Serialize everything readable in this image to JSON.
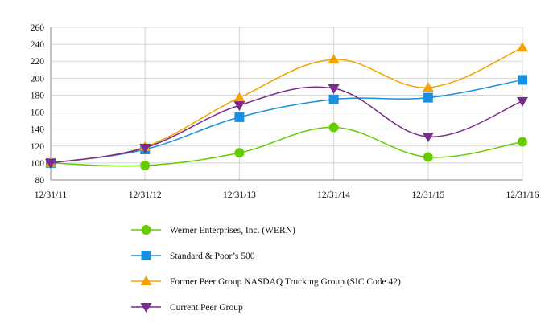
{
  "chart_data": {
    "type": "line",
    "title": "",
    "xlabel": "",
    "ylabel": "",
    "categories": [
      "12/31/11",
      "12/31/12",
      "12/31/13",
      "12/31/14",
      "12/31/15",
      "12/31/16"
    ],
    "ylim": [
      80,
      260
    ],
    "yticks": [
      80,
      100,
      120,
      140,
      160,
      180,
      200,
      220,
      240,
      260
    ],
    "grid": "vertical and horizontal",
    "legend_position": "bottom",
    "series": [
      {
        "name": "Werner Enterprises, Inc. (WERN)",
        "color": "#66cc00",
        "marker": "circle",
        "values": [
          100,
          97,
          112,
          142,
          107,
          125
        ]
      },
      {
        "name": "Standard & Poor’s 500",
        "color": "#1a8fe0",
        "marker": "square",
        "values": [
          100,
          116,
          154,
          175,
          177,
          198
        ]
      },
      {
        "name": "Former Peer Group NASDAQ Trucking Group (SIC Code 42)",
        "color": "#f5a300",
        "marker": "triangle-up",
        "values": [
          100,
          119,
          177,
          222,
          189,
          236
        ]
      },
      {
        "name": "Current Peer Group",
        "color": "#7a2c8c",
        "marker": "triangle-down",
        "values": [
          100,
          118,
          168,
          188,
          131,
          173
        ]
      }
    ]
  }
}
